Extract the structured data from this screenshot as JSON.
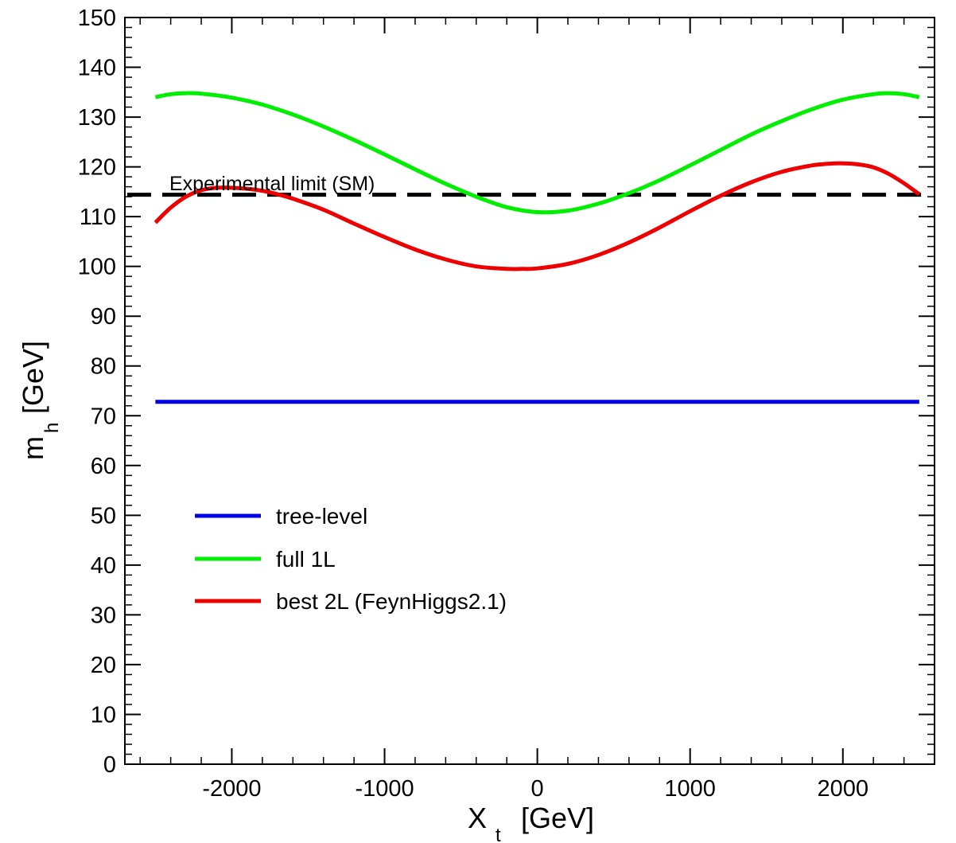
{
  "chart_data": {
    "type": "line",
    "title": "",
    "xlabel": {
      "main": "X",
      "sub": "t",
      "unit": "[GeV]"
    },
    "ylabel": {
      "main": "m",
      "sub": "h",
      "unit": "[GeV]"
    },
    "xlim": [
      -2700,
      2600
    ],
    "ylim": [
      0,
      150
    ],
    "x_ticks": [
      -2000,
      -1000,
      0,
      1000,
      2000
    ],
    "x_tick_labels": [
      "-2000",
      "-1000",
      "0",
      "1000",
      "2000"
    ],
    "y_ticks": [
      0,
      10,
      20,
      30,
      40,
      50,
      60,
      70,
      80,
      90,
      100,
      110,
      120,
      130,
      140,
      150
    ],
    "y_tick_labels": [
      "0",
      "10",
      "20",
      "30",
      "40",
      "50",
      "60",
      "70",
      "80",
      "90",
      "100",
      "110",
      "120",
      "130",
      "140",
      "150"
    ],
    "grid": false,
    "legend_position": "left",
    "series": [
      {
        "name": "tree-level",
        "color": "#0000e6",
        "x": [
          -2500,
          2500
        ],
        "y": [
          72.8,
          72.8
        ]
      },
      {
        "name": "full 1L",
        "color": "#00ee00",
        "x": [
          -2500,
          -2400,
          -2300,
          -2200,
          -2000,
          -1800,
          -1600,
          -1400,
          -1200,
          -1000,
          -800,
          -600,
          -400,
          -200,
          0,
          200,
          400,
          600,
          800,
          1000,
          1200,
          1400,
          1600,
          1800,
          2000,
          2200,
          2300,
          2400,
          2500
        ],
        "y": [
          134.0,
          134.6,
          134.8,
          134.7,
          133.9,
          132.5,
          130.5,
          128.1,
          125.4,
          122.5,
          119.5,
          116.6,
          114.0,
          111.9,
          110.9,
          111.2,
          112.6,
          114.7,
          117.3,
          120.3,
          123.4,
          126.5,
          129.2,
          131.6,
          133.5,
          134.6,
          134.8,
          134.6,
          134.0
        ]
      },
      {
        "name": "best 2L (FeynHiggs2.1)",
        "color": "#ee0000",
        "x": [
          -2500,
          -2400,
          -2300,
          -2200,
          -2100,
          -2000,
          -1900,
          -1800,
          -1700,
          -1600,
          -1400,
          -1200,
          -1000,
          -800,
          -600,
          -400,
          -200,
          -100,
          0,
          200,
          400,
          600,
          800,
          1000,
          1200,
          1400,
          1600,
          1800,
          1900,
          2000,
          2100,
          2200,
          2300,
          2400,
          2500
        ],
        "y": [
          108.8,
          111.8,
          114.0,
          115.3,
          115.8,
          115.8,
          115.6,
          115.2,
          114.5,
          113.6,
          111.4,
          108.6,
          105.9,
          103.4,
          101.4,
          100.0,
          99.5,
          99.5,
          99.6,
          100.5,
          102.3,
          104.8,
          107.8,
          111.1,
          114.2,
          116.9,
          119.0,
          120.3,
          120.6,
          120.7,
          120.5,
          119.9,
          118.6,
          116.7,
          114.5
        ]
      }
    ],
    "reference_lines": [
      {
        "label": "Experimental limit (SM)",
        "y": 114.4,
        "style": "dashed",
        "color": "#000000"
      }
    ]
  }
}
